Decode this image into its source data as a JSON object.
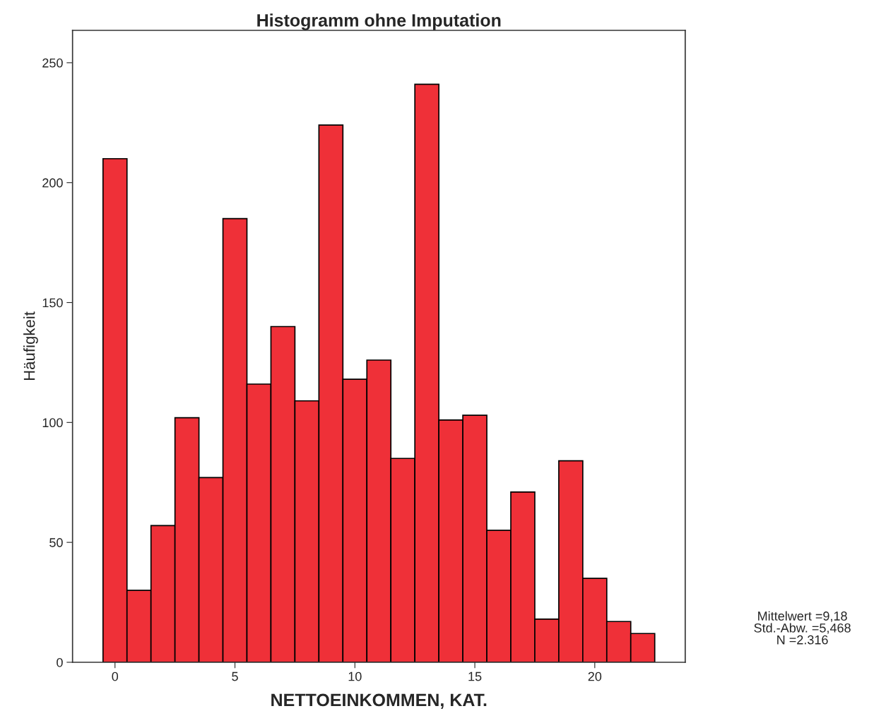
{
  "chart_data": {
    "type": "histogram",
    "title": "Histogramm ohne Imputation",
    "xlabel": "NETTOEINKOMMEN, KAT.",
    "ylabel": "Häufigkeit",
    "bins": [
      -0.5,
      0.5,
      1.5,
      2.5,
      3.5,
      4.5,
      5.5,
      6.5,
      7.5,
      8.5,
      9.5,
      10.5,
      11.5,
      12.5,
      13.5,
      14.5,
      15.5,
      16.5,
      17.5,
      18.5,
      19.5,
      20.5,
      21.5,
      22.5
    ],
    "values": [
      210,
      30,
      57,
      102,
      77,
      185,
      116,
      140,
      109,
      224,
      118,
      126,
      85,
      241,
      101,
      103,
      55,
      71,
      18,
      84,
      35,
      17,
      12
    ],
    "color": "#ef3038",
    "xlim": [
      -1.77,
      23.77
    ],
    "ylim": [
      0,
      263.5
    ],
    "xticks": [
      0,
      5,
      10,
      15,
      20
    ],
    "yticks": [
      0,
      50,
      100,
      150,
      200,
      250
    ],
    "grid": false,
    "legend": false,
    "annotations": [
      "Mittelwert =9,18\nStd.-Abw. =5,468\nN =2.316"
    ]
  }
}
